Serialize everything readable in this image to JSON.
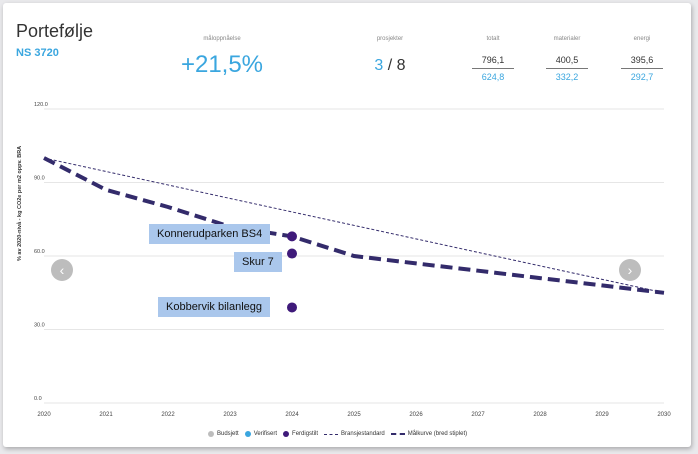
{
  "header": {
    "title": "Portefølje",
    "subtitle": "NS 3720",
    "target_label": "måloppnåelse",
    "target_value": "+21,5%",
    "projects_label": "prosjekter",
    "projects_current": "3",
    "projects_separator": "/",
    "projects_total": "8",
    "metrics": [
      {
        "label": "totalt",
        "top": "796,1",
        "bottom": "624,8"
      },
      {
        "label": "materialer",
        "top": "400,5",
        "bottom": "332,2"
      },
      {
        "label": "energi",
        "top": "395,6",
        "bottom": "292,7"
      }
    ]
  },
  "nav": {
    "prev_icon": "chevron-left-icon",
    "next_icon": "chevron-right-icon",
    "prev": "‹",
    "next": "›"
  },
  "colors": {
    "accent": "#3aa6df",
    "series": "#332b6b",
    "point": "#3f1a7a",
    "callout": "#aac7ec"
  },
  "chart_data": {
    "type": "line",
    "ylabel": "% av 2020-nivå - kg CO2e per m2 oppv. BRA",
    "xlim": [
      2020,
      2030
    ],
    "ylim": [
      0,
      120
    ],
    "x_ticks": [
      "2020",
      "2021",
      "2022",
      "2023",
      "2024",
      "2025",
      "2026",
      "2027",
      "2028",
      "2029",
      "2030"
    ],
    "y_ticks": [
      "0.0",
      "30.0",
      "60.0",
      "90.0",
      "120.0"
    ],
    "grid": true,
    "legend_position": "bottom",
    "series": [
      {
        "name": "Bransjestandard",
        "style": "thin-dashed",
        "x": [
          2020,
          2030
        ],
        "y": [
          100,
          45
        ]
      },
      {
        "name": "Målkurve (bred stiplet)",
        "style": "thick-dashed",
        "x": [
          2020,
          2021,
          2022,
          2023,
          2024,
          2025,
          2026,
          2027,
          2028,
          2029,
          2030
        ],
        "y": [
          100,
          87,
          80,
          72,
          68,
          60,
          57,
          54,
          51,
          48,
          45
        ]
      }
    ],
    "points": [
      {
        "label": "Konnerudparken BS4",
        "x": 2024,
        "y": 68,
        "status": "Ferdigstilt"
      },
      {
        "label": "Skur 7",
        "x": 2024,
        "y": 61,
        "status": "Ferdigstilt"
      },
      {
        "label": "Kobbervik bilanlegg",
        "x": 2024,
        "y": 39,
        "status": "Ferdigstilt"
      }
    ],
    "legend": [
      {
        "label": "Budsjett",
        "kind": "dot",
        "color": "#bdbdbd"
      },
      {
        "label": "Verifisert",
        "kind": "dot",
        "color": "#3aa6df"
      },
      {
        "label": "Ferdigstilt",
        "kind": "dot",
        "color": "#3f1a7a"
      },
      {
        "label": "Bransjestandard",
        "kind": "thin-dash",
        "color": "#332b6b"
      },
      {
        "label": "Målkurve (bred stiplet)",
        "kind": "thick-dash",
        "color": "#332b6b"
      }
    ]
  }
}
